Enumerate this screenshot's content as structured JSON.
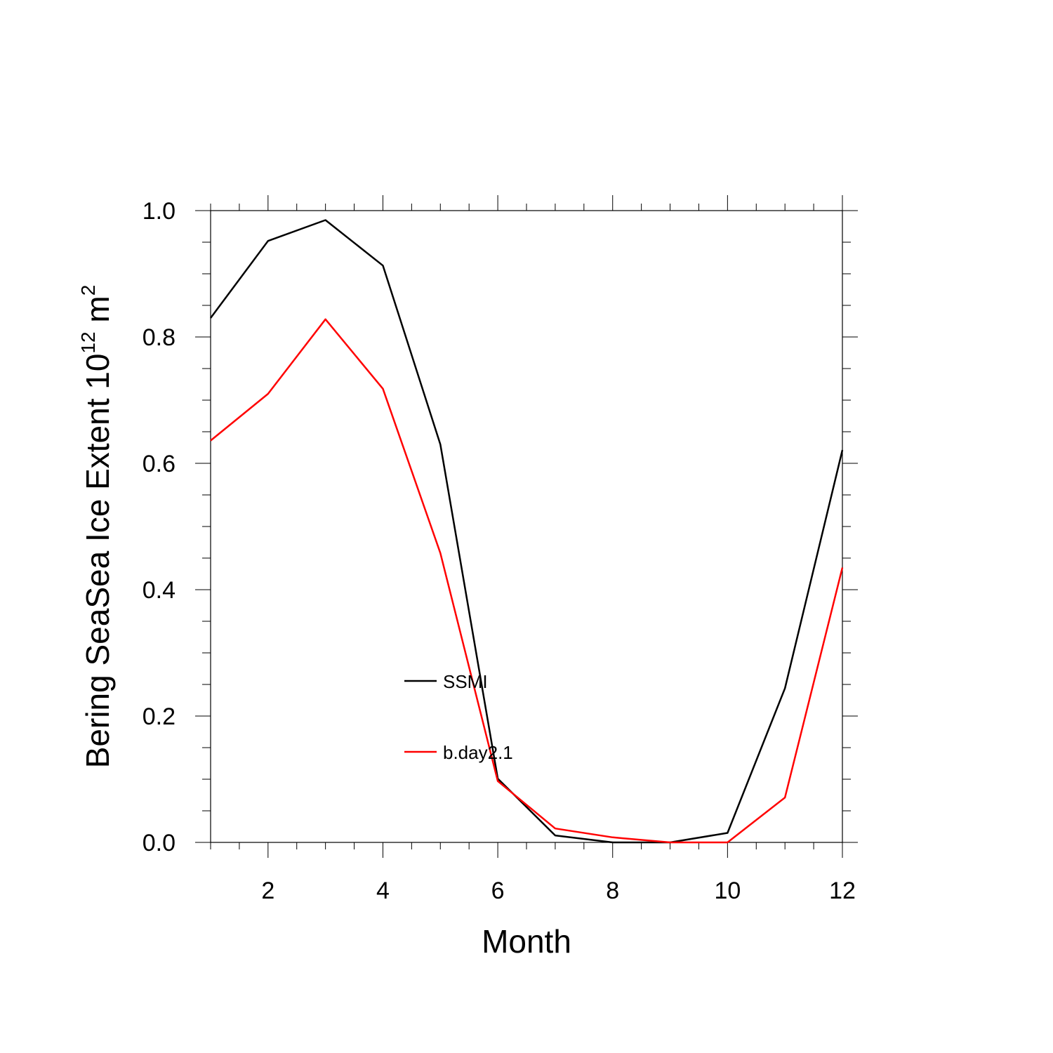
{
  "chart_data": {
    "type": "line",
    "title": "",
    "xlabel": "Month",
    "ylabel": {
      "text": "Bering SeaSea Ice Extent 10",
      "superscript_1": "12",
      "unit": " m",
      "superscript_2": "2"
    },
    "xlim": [
      1,
      12
    ],
    "ylim": [
      0.0,
      1.0
    ],
    "x": [
      1,
      2,
      3,
      4,
      5,
      6,
      7,
      8,
      9,
      10,
      11,
      12
    ],
    "xticks": [
      2,
      4,
      6,
      8,
      10,
      12
    ],
    "xtick_labels": [
      "2",
      "4",
      "6",
      "8",
      "10",
      "12"
    ],
    "yticks": [
      0.0,
      0.2,
      0.4,
      0.6,
      0.8,
      1.0
    ],
    "ytick_labels": [
      "0.0",
      "0.2",
      "0.4",
      "0.6",
      "0.8",
      "1.0"
    ],
    "grid": false,
    "legend_placement": "center",
    "series": [
      {
        "name": "SSMI",
        "color": "#000000",
        "values": [
          0.83,
          0.952,
          0.985,
          0.913,
          0.63,
          0.101,
          0.011,
          0.0,
          0.0,
          0.015,
          0.244,
          0.621
        ]
      },
      {
        "name": "b.day2.1",
        "color": "#ff0000",
        "values": [
          0.636,
          0.71,
          0.828,
          0.718,
          0.458,
          0.097,
          0.022,
          0.008,
          0.0,
          0.0,
          0.071,
          0.435
        ]
      }
    ]
  }
}
